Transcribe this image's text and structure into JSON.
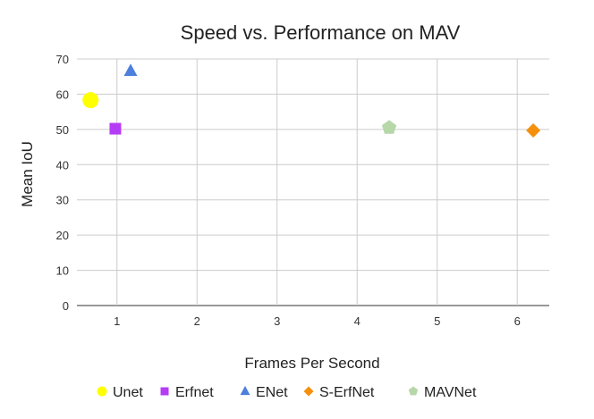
{
  "chart_data": {
    "type": "scatter",
    "title": "Speed vs. Performance on MAV",
    "xlabel": "Frames Per Second",
    "ylabel": "Mean IoU",
    "xlim": [
      0.5,
      6.4
    ],
    "ylim": [
      0,
      70
    ],
    "xticks": [
      "1",
      "2",
      "3",
      "4",
      "5",
      "6"
    ],
    "yticks": [
      "0",
      "10",
      "20",
      "30",
      "40",
      "50",
      "60",
      "70"
    ],
    "grid": true,
    "legend_position": "bottom",
    "series": [
      {
        "name": "Unet",
        "marker": "circle",
        "color": "#ffff00",
        "points": [
          {
            "x": 0.67,
            "y": 58.3
          }
        ]
      },
      {
        "name": "Erfnet",
        "marker": "square",
        "color": "#b53cf5",
        "points": [
          {
            "x": 0.98,
            "y": 50.2
          }
        ]
      },
      {
        "name": "ENet",
        "marker": "triangle",
        "color": "#4c80dc",
        "points": [
          {
            "x": 1.17,
            "y": 66.6
          }
        ]
      },
      {
        "name": "S-ErfNet",
        "marker": "diamond",
        "color": "#f4900c",
        "points": [
          {
            "x": 6.2,
            "y": 49.7
          }
        ]
      },
      {
        "name": "MAVNet",
        "marker": "pentagon",
        "color": "#b6d7a8",
        "points": [
          {
            "x": 4.4,
            "y": 50.5
          }
        ]
      }
    ]
  }
}
